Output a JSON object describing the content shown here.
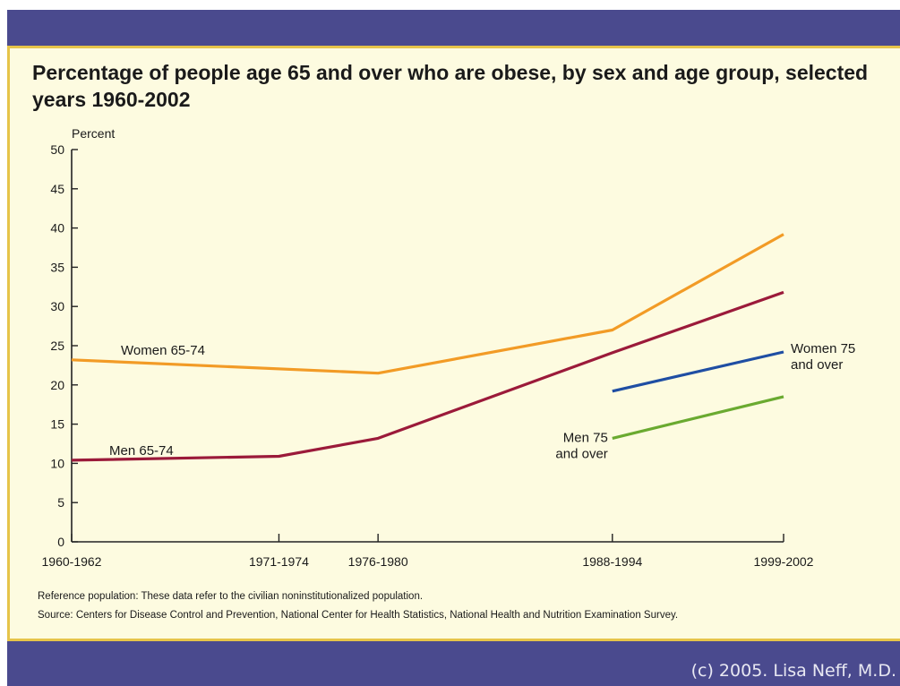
{
  "title": "Percentage of people age 65 and over who are obese, by sex and age group, selected years 1960-2002",
  "footnotes": {
    "reference": "Reference population: These data refer to the civilian noninstitutionalized population.",
    "source": "Source: Centers for Disease Control and Prevention, National Center for Health Statistics, National Health and Nutrition Examination Survey."
  },
  "watermark": "(c) 2005. Lisa Neff, M.D.",
  "colors": {
    "band": "#4a4a8e",
    "border": "#e6c44a",
    "panel": "#fdfbe0",
    "women_65_74": "#f29b26",
    "men_65_74": "#9b1a3a",
    "women_75_over": "#1f4ea3",
    "men_75_over": "#6aaa30"
  },
  "chart_data": {
    "type": "line",
    "ylabel": "Percent",
    "ylim": [
      0,
      50
    ],
    "yticks": [
      0,
      5,
      10,
      15,
      20,
      25,
      30,
      35,
      40,
      45,
      50
    ],
    "categories": [
      "1960-1962",
      "1971-1974",
      "1976-1980",
      "1988-1994",
      "1999-2002"
    ],
    "x_positions_years": [
      1961,
      1972.5,
      1978,
      1991,
      2000.5
    ],
    "series": [
      {
        "name": "Women 65-74",
        "color": "#f29b26",
        "values": [
          23.2,
          null,
          21.5,
          27.0,
          39.2
        ]
      },
      {
        "name": "Men 65-74",
        "color": "#9b1a3a",
        "values": [
          10.4,
          10.9,
          13.2,
          24.1,
          31.8
        ]
      },
      {
        "name": "Women 75 and over",
        "color": "#1f4ea3",
        "values": [
          null,
          null,
          null,
          19.2,
          24.2
        ]
      },
      {
        "name": "Men 75 and over",
        "color": "#6aaa30",
        "values": [
          null,
          null,
          null,
          13.2,
          18.5
        ]
      }
    ],
    "series_labels": [
      {
        "lines": [
          "Women 65-74"
        ]
      },
      {
        "lines": [
          "Men 65-74"
        ]
      },
      {
        "lines": [
          "Women 75",
          "and over"
        ]
      },
      {
        "lines": [
          "Men 75",
          "and over"
        ]
      }
    ],
    "grid": false,
    "legend": "inline labels"
  }
}
